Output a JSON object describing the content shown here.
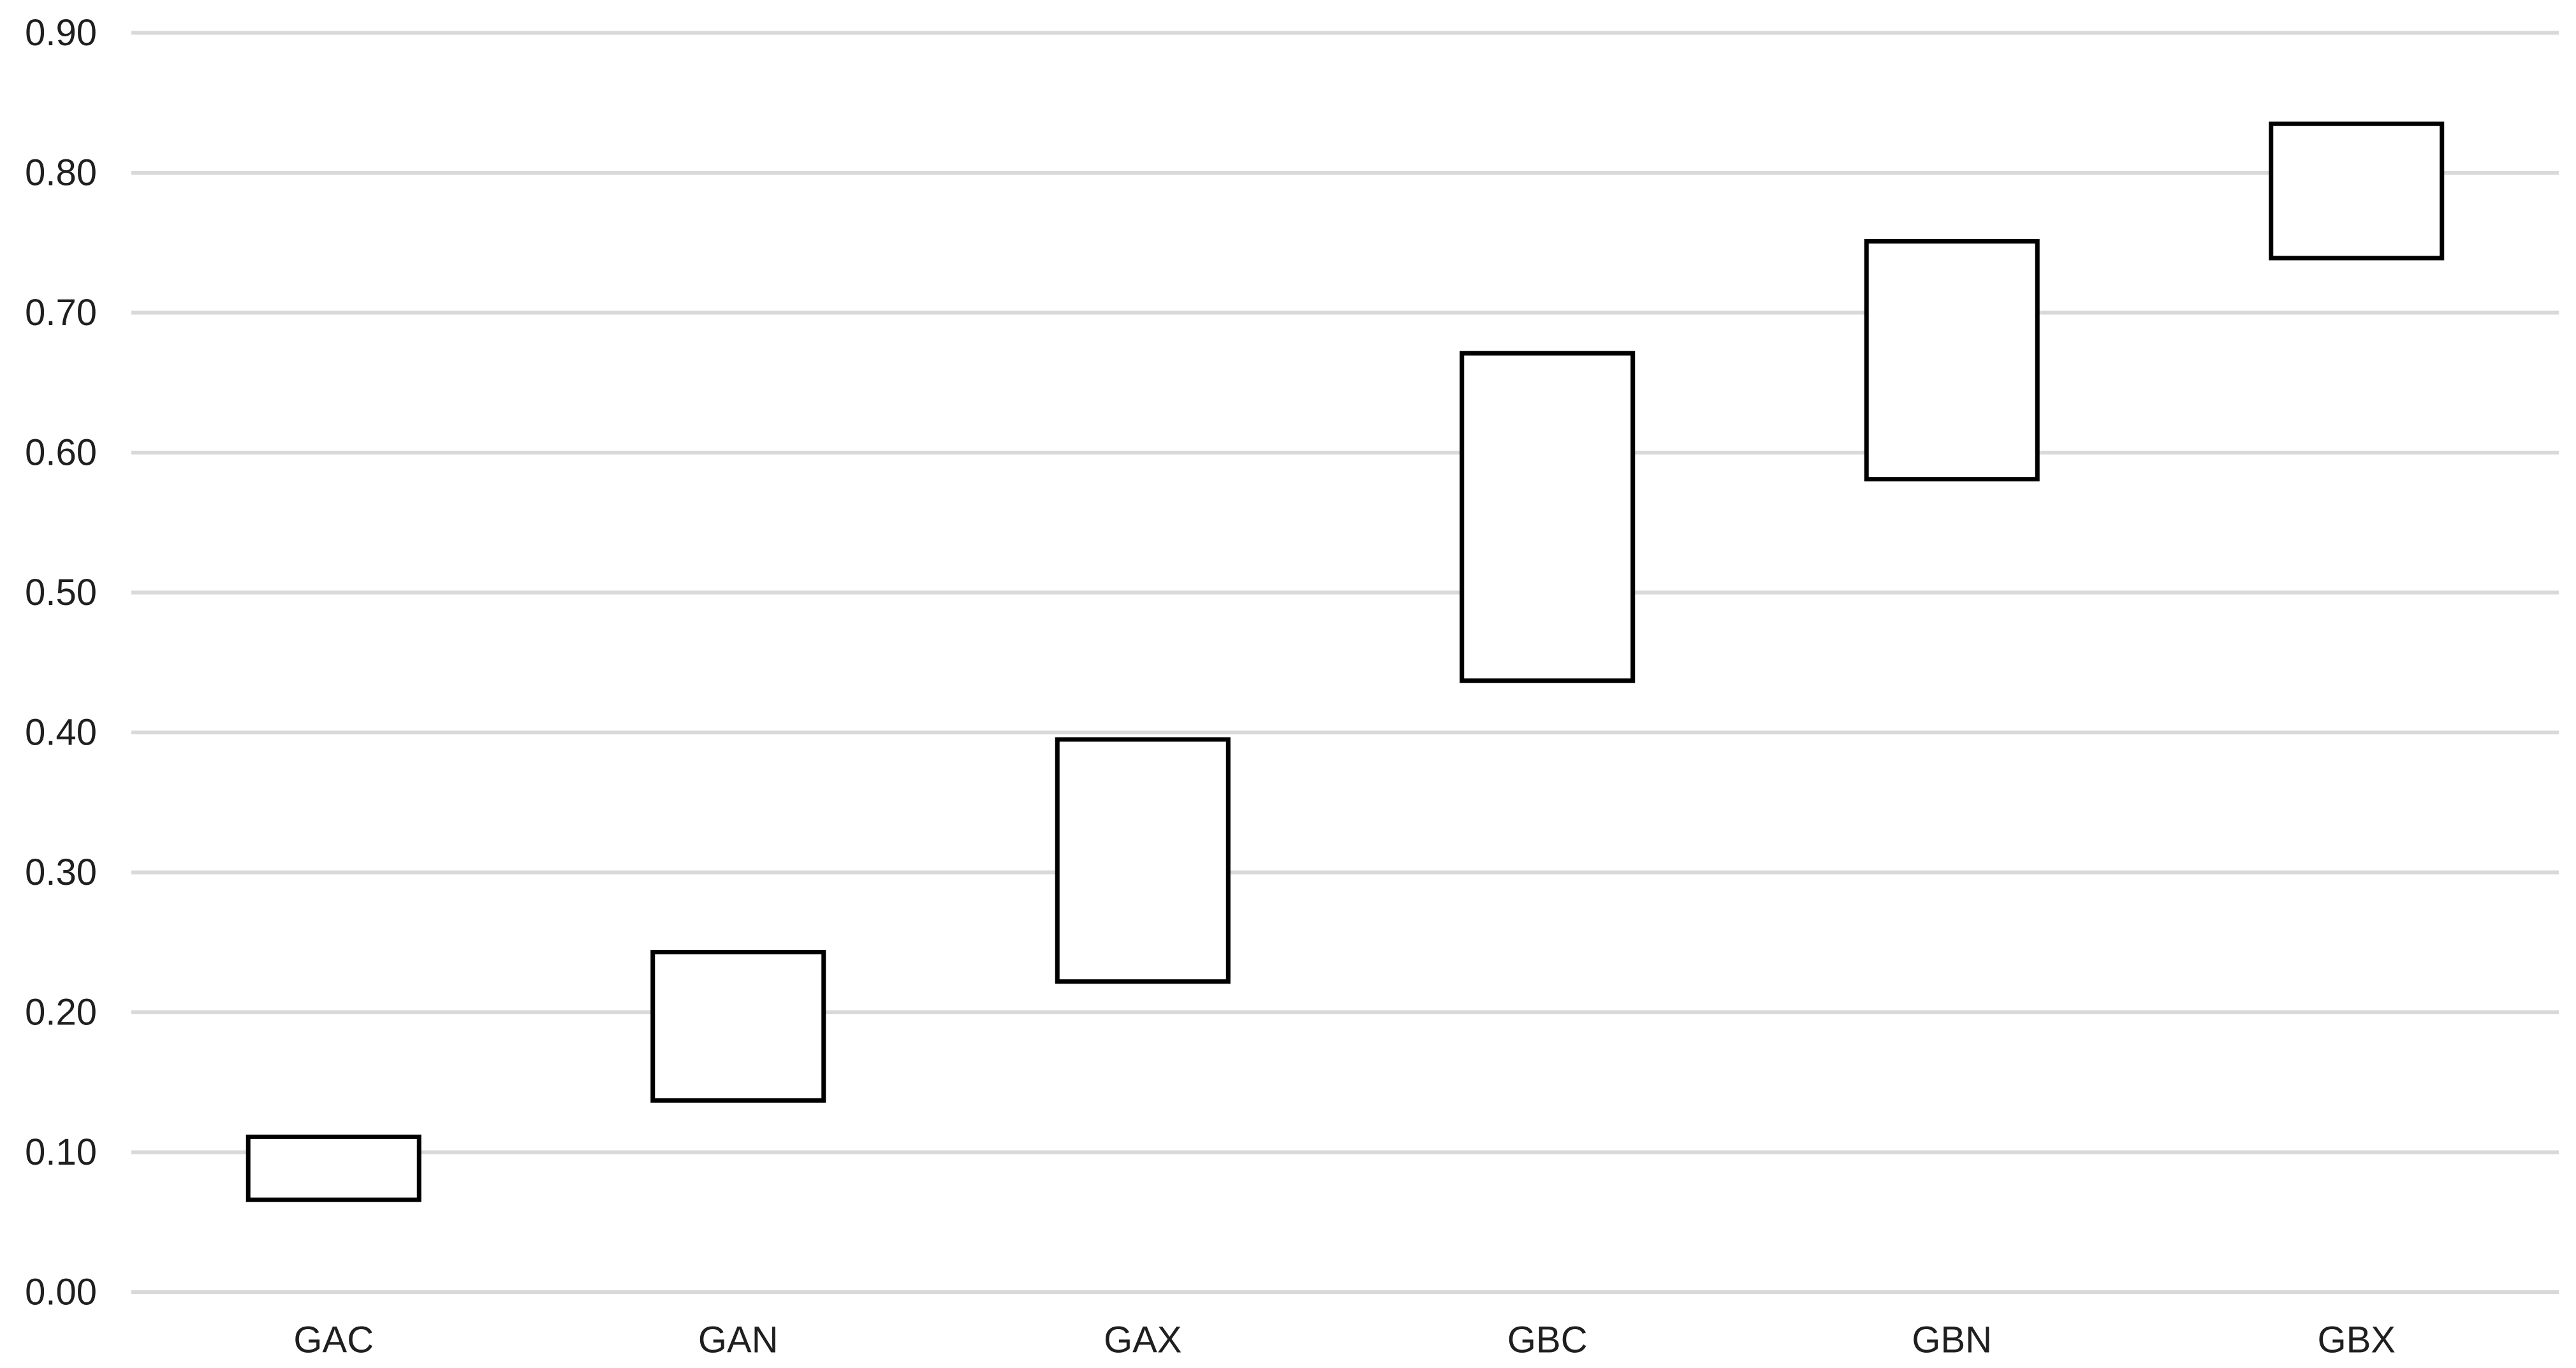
{
  "chart_data": {
    "type": "bar",
    "subtype": "floating_range_bars",
    "title": "",
    "xlabel": "",
    "ylabel": "",
    "categories": [
      "GAC",
      "GAN",
      "GAX",
      "GBC",
      "GBN",
      "GBX"
    ],
    "series": [
      {
        "name": "range",
        "low": [
          0.066,
          0.137,
          0.222,
          0.437,
          0.581,
          0.739
        ],
        "high": [
          0.111,
          0.243,
          0.395,
          0.671,
          0.751,
          0.835
        ]
      }
    ],
    "y_ticks": [
      "0.00",
      "0.10",
      "0.20",
      "0.30",
      "0.40",
      "0.50",
      "0.60",
      "0.70",
      "0.80",
      "0.90"
    ],
    "ylim": [
      0,
      0.9
    ],
    "grid": true,
    "legend_position": "none",
    "colors": {
      "background": "#ffffff",
      "gridline": "#d9d9d9",
      "bar_fill": "#ffffff",
      "bar_border": "#000000",
      "text": "#1f1f1f"
    }
  }
}
